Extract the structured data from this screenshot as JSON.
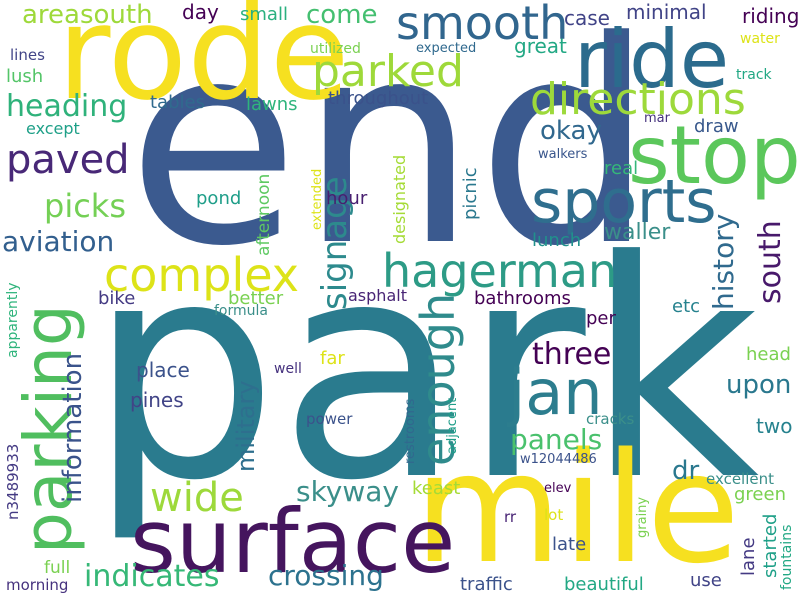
{
  "words": [
    {
      "text": "park",
      "color": "#2a7b8e"
    },
    {
      "text": "end",
      "color": "#3b5a8f"
    },
    {
      "text": "mile",
      "color": "#f6e020"
    },
    {
      "text": "rode",
      "color": "#f6e020"
    },
    {
      "text": "surface",
      "color": "#45155e"
    },
    {
      "text": "parking",
      "color": "#50be5f"
    },
    {
      "text": "stop",
      "color": "#5bc75b"
    },
    {
      "text": "ride",
      "color": "#2b6b8d"
    },
    {
      "text": "sports",
      "color": "#2f6e8e"
    },
    {
      "text": "smooth",
      "color": "#31668e"
    },
    {
      "text": "parked",
      "color": "#9ed93a"
    },
    {
      "text": "directions",
      "color": "#9dd93b"
    },
    {
      "text": "complex",
      "color": "#dde318"
    },
    {
      "text": "hagerman",
      "color": "#2d9b86"
    },
    {
      "text": "jan",
      "color": "#2c7d8e"
    },
    {
      "text": "enough",
      "color": "#2f8b8c"
    },
    {
      "text": "signage",
      "color": "#2d8a8d"
    },
    {
      "text": "paved",
      "color": "#482877"
    },
    {
      "text": "heading",
      "color": "#2fb27b"
    },
    {
      "text": "picks",
      "color": "#74d055"
    },
    {
      "text": "aviation",
      "color": "#325f8e"
    },
    {
      "text": "wide",
      "color": "#9dd93b"
    },
    {
      "text": "indicates",
      "color": "#36b877"
    },
    {
      "text": "crossing",
      "color": "#2c728e"
    },
    {
      "text": "skyway",
      "color": "#3b8f8a"
    },
    {
      "text": "panels",
      "color": "#4ac16d"
    },
    {
      "text": "three",
      "color": "#440154"
    },
    {
      "text": "south",
      "color": "#48196b"
    },
    {
      "text": "history",
      "color": "#306a8e"
    },
    {
      "text": "upon",
      "color": "#2a788e"
    },
    {
      "text": "okay",
      "color": "#31688e"
    },
    {
      "text": "information",
      "color": "#3a538b"
    },
    {
      "text": "military",
      "color": "#2e6f8e"
    },
    {
      "text": "areasouth",
      "color": "#9ed93a"
    },
    {
      "text": "come",
      "color": "#44bf70"
    },
    {
      "text": "case",
      "color": "#414487"
    },
    {
      "text": "minimal",
      "color": "#414487"
    },
    {
      "text": "riding",
      "color": "#440154"
    },
    {
      "text": "great",
      "color": "#22a884"
    },
    {
      "text": "water",
      "color": "#dde318"
    },
    {
      "text": "track",
      "color": "#22a884"
    },
    {
      "text": "lines",
      "color": "#414487"
    },
    {
      "text": "utilized",
      "color": "#7ad151"
    },
    {
      "text": "expected",
      "color": "#30698e"
    },
    {
      "text": "lush",
      "color": "#54c568"
    },
    {
      "text": "small",
      "color": "#2ab07f"
    },
    {
      "text": "day",
      "color": "#440154"
    },
    {
      "text": "hour",
      "color": "#481f70"
    },
    {
      "text": "throughout",
      "color": "#3b528b"
    },
    {
      "text": "tables",
      "color": "#306a8e"
    },
    {
      "text": "lawns",
      "color": "#2fb47c"
    },
    {
      "text": "except",
      "color": "#1fa088"
    },
    {
      "text": "mar",
      "color": "#46327e"
    },
    {
      "text": "draw",
      "color": "#38588c"
    },
    {
      "text": "walkers",
      "color": "#39568c"
    },
    {
      "text": "real",
      "color": "#35b779"
    },
    {
      "text": "pond",
      "color": "#1f9e89"
    },
    {
      "text": "afternoon",
      "color": "#5ec962"
    },
    {
      "text": "extended",
      "color": "#dde318"
    },
    {
      "text": "designated",
      "color": "#a5db36"
    },
    {
      "text": "picnic",
      "color": "#2a788e"
    },
    {
      "text": "lunch",
      "color": "#21918c"
    },
    {
      "text": "waller",
      "color": "#3b8f8a"
    },
    {
      "text": "better",
      "color": "#7ad151"
    },
    {
      "text": "bike",
      "color": "#443a83"
    },
    {
      "text": "bathrooms",
      "color": "#440154"
    },
    {
      "text": "asphalt",
      "color": "#482475"
    },
    {
      "text": "formula",
      "color": "#3b8f8a"
    },
    {
      "text": "per",
      "color": "#440154"
    },
    {
      "text": "etc",
      "color": "#26828e"
    },
    {
      "text": "apparently",
      "color": "#2fb47c"
    },
    {
      "text": "place",
      "color": "#3b528b"
    },
    {
      "text": "pines",
      "color": "#414487"
    },
    {
      "text": "far",
      "color": "#dde318"
    },
    {
      "text": "well",
      "color": "#46327e"
    },
    {
      "text": "head",
      "color": "#7ad151"
    },
    {
      "text": "restrooms",
      "color": "#31688e"
    },
    {
      "text": "adjacent",
      "color": "#1f9e89"
    },
    {
      "text": "power",
      "color": "#3b528b"
    },
    {
      "text": "cracks",
      "color": "#3b8f8a"
    },
    {
      "text": "two",
      "color": "#26828e"
    },
    {
      "text": "n3489933",
      "color": "#443a83"
    },
    {
      "text": "w12044486",
      "color": "#3b528b"
    },
    {
      "text": "dr",
      "color": "#2a788e"
    },
    {
      "text": "keast",
      "color": "#a5db36"
    },
    {
      "text": "elev",
      "color": "#440154"
    },
    {
      "text": "excellent",
      "color": "#3b8f8a"
    },
    {
      "text": "green",
      "color": "#7ad151"
    },
    {
      "text": "rr",
      "color": "#482475"
    },
    {
      "text": "lot",
      "color": "#dde318"
    },
    {
      "text": "grainy",
      "color": "#7ad151"
    },
    {
      "text": "started",
      "color": "#1fa088"
    },
    {
      "text": "lane",
      "color": "#443a83"
    },
    {
      "text": "fountains",
      "color": "#22a884"
    },
    {
      "text": "late",
      "color": "#3b528b"
    },
    {
      "text": "full",
      "color": "#7ad151"
    },
    {
      "text": "traffic",
      "color": "#3b528b"
    },
    {
      "text": "beautiful",
      "color": "#22a884"
    },
    {
      "text": "use",
      "color": "#414487"
    },
    {
      "text": "morning",
      "color": "#46327e"
    }
  ]
}
